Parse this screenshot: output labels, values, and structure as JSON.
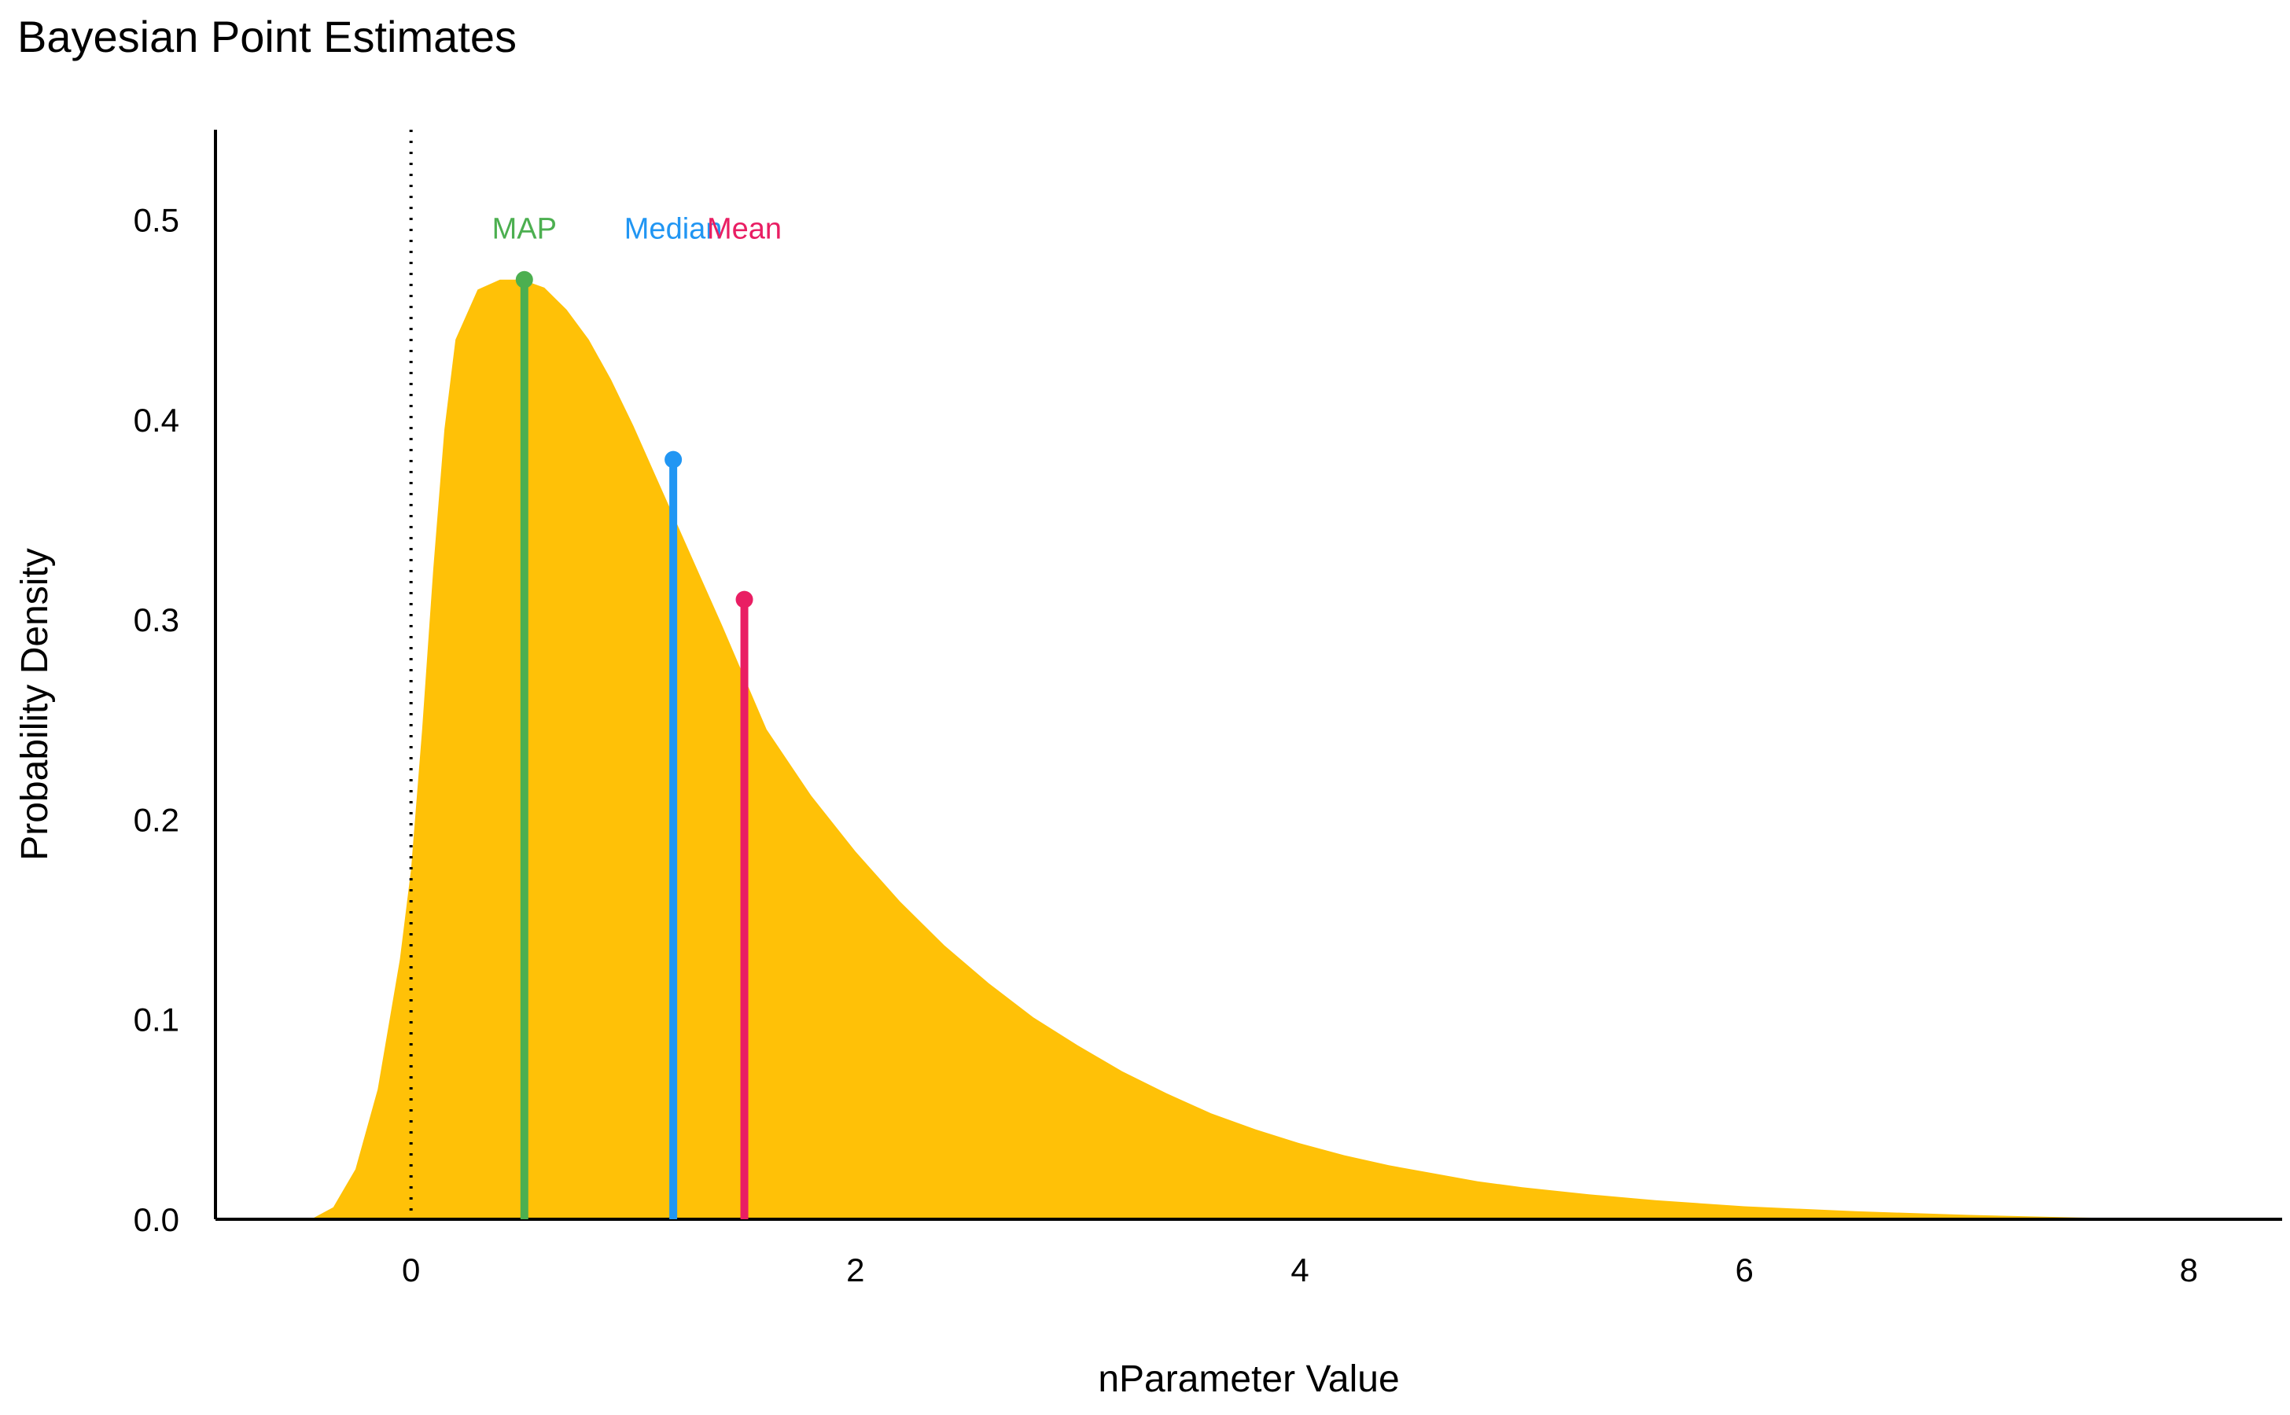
{
  "chart_data": {
    "type": "area",
    "title": "Bayesian Point Estimates",
    "xlabel": "nParameter Value",
    "ylabel": "Probability Density",
    "xlim": [
      -0.88,
      8.42
    ],
    "ylim": [
      0,
      0.545
    ],
    "x_ticks": [
      "0",
      "2",
      "4",
      "6",
      "8"
    ],
    "x_tick_values": [
      0,
      2,
      4,
      6,
      8
    ],
    "y_ticks": [
      "0.0",
      "0.1",
      "0.2",
      "0.3",
      "0.4",
      "0.5"
    ],
    "y_tick_values": [
      0,
      0.1,
      0.2,
      0.3,
      0.4,
      0.5
    ],
    "grid": false,
    "fill_color": "#FFC107",
    "reference_line_x": 0,
    "density": {
      "x": [
        -0.45,
        -0.35,
        -0.25,
        -0.15,
        -0.05,
        0.0,
        0.05,
        0.1,
        0.15,
        0.2,
        0.3,
        0.4,
        0.5,
        0.6,
        0.7,
        0.8,
        0.9,
        1.0,
        1.1,
        1.2,
        1.3,
        1.4,
        1.5,
        1.6,
        1.8,
        2.0,
        2.2,
        2.4,
        2.6,
        2.8,
        3.0,
        3.2,
        3.4,
        3.6,
        3.8,
        4.0,
        4.2,
        4.4,
        4.6,
        4.8,
        5.0,
        5.3,
        5.6,
        6.0,
        6.5,
        7.0,
        7.5,
        8.0
      ],
      "y": [
        0.0,
        0.006,
        0.025,
        0.065,
        0.13,
        0.175,
        0.245,
        0.325,
        0.395,
        0.44,
        0.465,
        0.47,
        0.47,
        0.466,
        0.455,
        0.44,
        0.42,
        0.397,
        0.372,
        0.347,
        0.322,
        0.297,
        0.271,
        0.245,
        0.212,
        0.184,
        0.159,
        0.137,
        0.118,
        0.101,
        0.087,
        0.074,
        0.063,
        0.053,
        0.045,
        0.038,
        0.032,
        0.027,
        0.023,
        0.019,
        0.016,
        0.0125,
        0.0095,
        0.0065,
        0.004,
        0.0022,
        0.0009,
        0.0
      ]
    },
    "estimates": [
      {
        "name": "MAP",
        "x": 0.51,
        "y": 0.47,
        "color": "#4CAF50"
      },
      {
        "name": "Median",
        "x": 1.18,
        "y": 0.38,
        "color": "#2196F3"
      },
      {
        "name": "Mean",
        "x": 1.5,
        "y": 0.31,
        "color": "#E91E63"
      }
    ],
    "label_y": 0.496
  }
}
